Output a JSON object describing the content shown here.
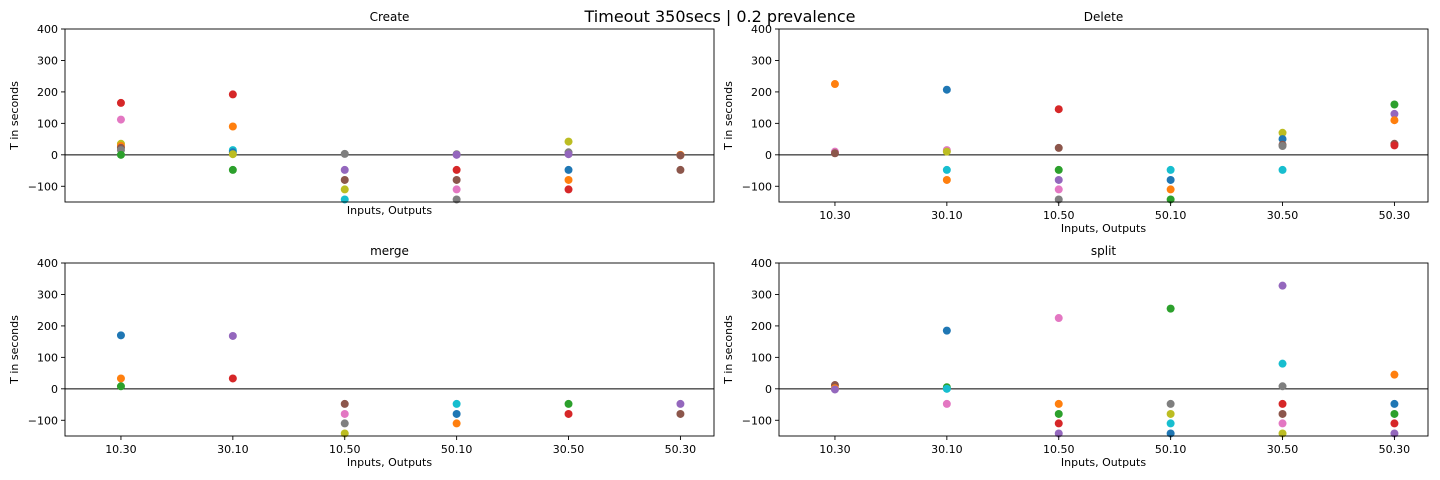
{
  "suptitle": "Timeout 350secs | 0.2 prevalence",
  "shared": {
    "categories": [
      "10.30",
      "30.10",
      "10.50",
      "50.10",
      "30.50",
      "50.30"
    ],
    "ylim": [
      -150,
      400
    ],
    "yticks": [
      -100,
      0,
      100,
      200,
      300,
      400
    ],
    "xlabel": "Inputs, Outputs",
    "ylabel": "T in seconds",
    "zero_line": true,
    "palette": {
      "blue": "#1f77b4",
      "orange": "#ff7f0e",
      "green": "#2ca02c",
      "red": "#d62728",
      "purple": "#9467bd",
      "brown": "#8c564b",
      "pink": "#e377c2",
      "gray": "#7f7f7f",
      "olive": "#bcbd22",
      "cyan": "#17becf"
    }
  },
  "chart_data": [
    {
      "type": "scatter",
      "title": "Create",
      "xlabel": "Inputs, Outputs",
      "ylabel": "T in seconds",
      "show_xticks": false,
      "points": [
        {
          "x": "10.30",
          "y": 165,
          "color": "red"
        },
        {
          "x": "10.30",
          "y": 112,
          "color": "pink"
        },
        {
          "x": "10.30",
          "y": 35,
          "color": "olive"
        },
        {
          "x": "10.30",
          "y": 28,
          "color": "orange"
        },
        {
          "x": "10.30",
          "y": 22,
          "color": "brown"
        },
        {
          "x": "10.30",
          "y": 15,
          "color": "gray"
        },
        {
          "x": "10.30",
          "y": 0,
          "color": "green"
        },
        {
          "x": "30.10",
          "y": 192,
          "color": "red"
        },
        {
          "x": "30.10",
          "y": 90,
          "color": "orange"
        },
        {
          "x": "30.10",
          "y": 15,
          "color": "cyan"
        },
        {
          "x": "30.10",
          "y": 8,
          "color": "blue"
        },
        {
          "x": "30.10",
          "y": 2,
          "color": "olive"
        },
        {
          "x": "30.10",
          "y": -48,
          "color": "green"
        },
        {
          "x": "10.50",
          "y": 3,
          "color": "gray"
        },
        {
          "x": "10.50",
          "y": -48,
          "color": "purple"
        },
        {
          "x": "10.50",
          "y": -80,
          "color": "brown"
        },
        {
          "x": "10.50",
          "y": -110,
          "color": "olive"
        },
        {
          "x": "10.50",
          "y": -142,
          "color": "cyan"
        },
        {
          "x": "50.10",
          "y": 2,
          "color": "gray"
        },
        {
          "x": "50.10",
          "y": 0,
          "color": "purple"
        },
        {
          "x": "50.10",
          "y": -48,
          "color": "red"
        },
        {
          "x": "50.10",
          "y": -80,
          "color": "brown"
        },
        {
          "x": "50.10",
          "y": -110,
          "color": "pink"
        },
        {
          "x": "50.10",
          "y": -142,
          "color": "gray"
        },
        {
          "x": "30.50",
          "y": 42,
          "color": "olive"
        },
        {
          "x": "30.50",
          "y": 8,
          "color": "gray"
        },
        {
          "x": "30.50",
          "y": 2,
          "color": "purple"
        },
        {
          "x": "30.50",
          "y": -48,
          "color": "blue"
        },
        {
          "x": "30.50",
          "y": -80,
          "color": "orange"
        },
        {
          "x": "30.50",
          "y": -110,
          "color": "red"
        },
        {
          "x": "50.30",
          "y": 0,
          "color": "orange"
        },
        {
          "x": "50.30",
          "y": -2,
          "color": "brown"
        },
        {
          "x": "50.30",
          "y": -48,
          "color": "brown"
        }
      ]
    },
    {
      "type": "scatter",
      "title": "Delete",
      "xlabel": "Inputs, Outputs",
      "ylabel": "T in seconds",
      "show_xticks": true,
      "points": [
        {
          "x": "10.30",
          "y": 225,
          "color": "orange"
        },
        {
          "x": "10.30",
          "y": 10,
          "color": "pink"
        },
        {
          "x": "10.30",
          "y": 5,
          "color": "brown"
        },
        {
          "x": "30.10",
          "y": 207,
          "color": "blue"
        },
        {
          "x": "30.10",
          "y": 15,
          "color": "pink"
        },
        {
          "x": "30.10",
          "y": 10,
          "color": "olive"
        },
        {
          "x": "30.10",
          "y": -48,
          "color": "cyan"
        },
        {
          "x": "30.10",
          "y": -80,
          "color": "orange"
        },
        {
          "x": "10.50",
          "y": 145,
          "color": "red"
        },
        {
          "x": "10.50",
          "y": 22,
          "color": "brown"
        },
        {
          "x": "10.50",
          "y": -48,
          "color": "green"
        },
        {
          "x": "10.50",
          "y": -80,
          "color": "purple"
        },
        {
          "x": "10.50",
          "y": -110,
          "color": "pink"
        },
        {
          "x": "10.50",
          "y": -142,
          "color": "gray"
        },
        {
          "x": "50.10",
          "y": -48,
          "color": "cyan"
        },
        {
          "x": "50.10",
          "y": -80,
          "color": "blue"
        },
        {
          "x": "50.10",
          "y": -110,
          "color": "orange"
        },
        {
          "x": "50.10",
          "y": -142,
          "color": "green"
        },
        {
          "x": "30.50",
          "y": 70,
          "color": "olive"
        },
        {
          "x": "30.50",
          "y": 50,
          "color": "blue"
        },
        {
          "x": "30.50",
          "y": 32,
          "color": "brown"
        },
        {
          "x": "30.50",
          "y": 28,
          "color": "gray"
        },
        {
          "x": "30.50",
          "y": -48,
          "color": "cyan"
        },
        {
          "x": "50.30",
          "y": 160,
          "color": "green"
        },
        {
          "x": "50.30",
          "y": 130,
          "color": "purple"
        },
        {
          "x": "50.30",
          "y": 110,
          "color": "orange"
        },
        {
          "x": "50.30",
          "y": 35,
          "color": "brown"
        },
        {
          "x": "50.30",
          "y": 30,
          "color": "red"
        }
      ]
    },
    {
      "type": "scatter",
      "title": "merge",
      "xlabel": "Inputs, Outputs",
      "ylabel": "T in seconds",
      "show_xticks": true,
      "points": [
        {
          "x": "10.30",
          "y": 170,
          "color": "blue"
        },
        {
          "x": "10.30",
          "y": 33,
          "color": "orange"
        },
        {
          "x": "10.30",
          "y": 8,
          "color": "green"
        },
        {
          "x": "30.10",
          "y": 168,
          "color": "purple"
        },
        {
          "x": "30.10",
          "y": 33,
          "color": "red"
        },
        {
          "x": "10.50",
          "y": -48,
          "color": "brown"
        },
        {
          "x": "10.50",
          "y": -80,
          "color": "pink"
        },
        {
          "x": "10.50",
          "y": -110,
          "color": "gray"
        },
        {
          "x": "10.50",
          "y": -142,
          "color": "olive"
        },
        {
          "x": "50.10",
          "y": -48,
          "color": "cyan"
        },
        {
          "x": "50.10",
          "y": -80,
          "color": "blue"
        },
        {
          "x": "50.10",
          "y": -110,
          "color": "orange"
        },
        {
          "x": "30.50",
          "y": -48,
          "color": "green"
        },
        {
          "x": "30.50",
          "y": -80,
          "color": "red"
        },
        {
          "x": "50.30",
          "y": -48,
          "color": "purple"
        },
        {
          "x": "50.30",
          "y": -80,
          "color": "brown"
        }
      ]
    },
    {
      "type": "scatter",
      "title": "split",
      "xlabel": "Inputs, Outputs",
      "ylabel": "T in seconds",
      "show_xticks": true,
      "points": [
        {
          "x": "10.30",
          "y": 12,
          "color": "brown"
        },
        {
          "x": "10.30",
          "y": 2,
          "color": "orange"
        },
        {
          "x": "10.30",
          "y": -2,
          "color": "purple"
        },
        {
          "x": "30.10",
          "y": 185,
          "color": "blue"
        },
        {
          "x": "30.10",
          "y": 5,
          "color": "green"
        },
        {
          "x": "30.10",
          "y": 0,
          "color": "cyan"
        },
        {
          "x": "30.10",
          "y": -48,
          "color": "pink"
        },
        {
          "x": "10.50",
          "y": 225,
          "color": "pink"
        },
        {
          "x": "10.50",
          "y": -48,
          "color": "orange"
        },
        {
          "x": "10.50",
          "y": -80,
          "color": "green"
        },
        {
          "x": "10.50",
          "y": -110,
          "color": "red"
        },
        {
          "x": "10.50",
          "y": -142,
          "color": "purple"
        },
        {
          "x": "50.10",
          "y": 255,
          "color": "green"
        },
        {
          "x": "50.10",
          "y": -48,
          "color": "gray"
        },
        {
          "x": "50.10",
          "y": -80,
          "color": "olive"
        },
        {
          "x": "50.10",
          "y": -110,
          "color": "cyan"
        },
        {
          "x": "50.10",
          "y": -142,
          "color": "blue"
        },
        {
          "x": "30.50",
          "y": 328,
          "color": "purple"
        },
        {
          "x": "30.50",
          "y": 80,
          "color": "cyan"
        },
        {
          "x": "30.50",
          "y": 8,
          "color": "gray"
        },
        {
          "x": "30.50",
          "y": -48,
          "color": "red"
        },
        {
          "x": "30.50",
          "y": -80,
          "color": "brown"
        },
        {
          "x": "30.50",
          "y": -110,
          "color": "pink"
        },
        {
          "x": "30.50",
          "y": -142,
          "color": "olive"
        },
        {
          "x": "50.30",
          "y": 45,
          "color": "orange"
        },
        {
          "x": "50.30",
          "y": -48,
          "color": "blue"
        },
        {
          "x": "50.30",
          "y": -80,
          "color": "green"
        },
        {
          "x": "50.30",
          "y": -110,
          "color": "red"
        },
        {
          "x": "50.30",
          "y": -142,
          "color": "purple"
        }
      ]
    }
  ]
}
